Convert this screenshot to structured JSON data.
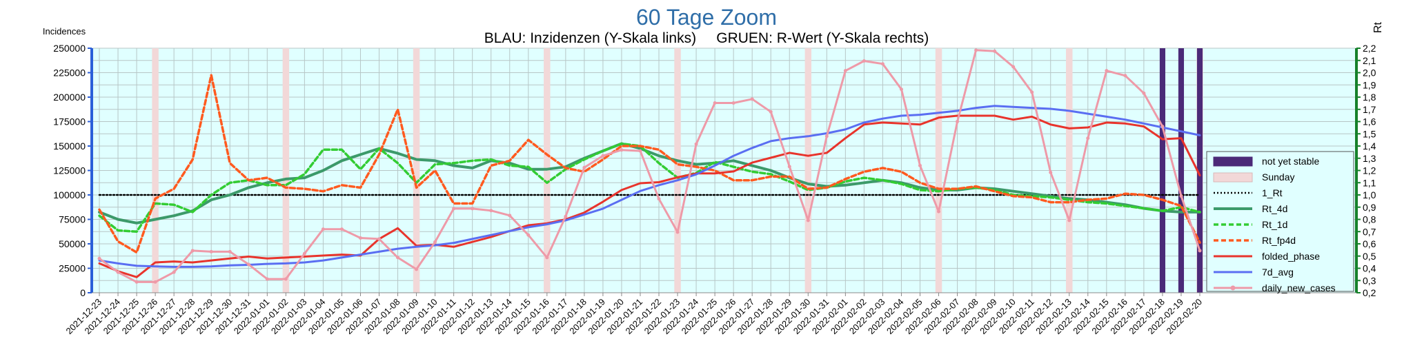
{
  "chart_data": {
    "type": "line",
    "title": "60 Tage Zoom",
    "subtitle": "BLAU: Inzidenzen (Y-Skala links)     GRUEN: R-Wert (Y-Skala rechts)",
    "ylabel_left": "Incidences",
    "ylabel_right": "Rt",
    "ylim_left": [
      0,
      250000
    ],
    "ylim_right": [
      0.2,
      2.2
    ],
    "yticks_left": [
      "0",
      "25000",
      "50000",
      "75000",
      "100000",
      "125000",
      "150000",
      "175000",
      "200000",
      "225000",
      "250000"
    ],
    "yticks_right": [
      "0,2",
      "0,3",
      "0,4",
      "0,5",
      "0,6",
      "0,7",
      "0,8",
      "0,9",
      "1,0",
      "1,1",
      "1,2",
      "1,3",
      "1,4",
      "1,5",
      "1,6",
      "1,7",
      "1,8",
      "1,9",
      "2,0",
      "2,1",
      "2,2"
    ],
    "grid": true,
    "legend_position": "right",
    "background": "#e0ffff",
    "x": [
      "2021-12-23",
      "2021-12-24",
      "2021-12-25",
      "2021-12-26",
      "2021-12-27",
      "2021-12-28",
      "2021-12-29",
      "2021-12-30",
      "2021-12-31",
      "2022-01-01",
      "2022-01-02",
      "2022-01-03",
      "2022-01-04",
      "2022-01-05",
      "2022-01-06",
      "2022-01-07",
      "2022-01-08",
      "2022-01-09",
      "2022-01-10",
      "2022-01-11",
      "2022-01-12",
      "2022-01-13",
      "2022-01-14",
      "2022-01-15",
      "2022-01-16",
      "2022-01-17",
      "2022-01-18",
      "2022-01-19",
      "2022-01-20",
      "2022-01-21",
      "2022-01-22",
      "2022-01-23",
      "2022-01-24",
      "2022-01-25",
      "2022-01-26",
      "2022-01-27",
      "2022-01-28",
      "2022-01-29",
      "2022-01-30",
      "2022-01-31",
      "2022-02-01",
      "2022-02-02",
      "2022-02-03",
      "2022-02-04",
      "2022-02-05",
      "2022-02-06",
      "2022-02-07",
      "2022-02-08",
      "2022-02-09",
      "2022-02-10",
      "2022-02-11",
      "2022-02-12",
      "2022-02-13",
      "2022-02-14",
      "2022-02-15",
      "2022-02-16",
      "2022-02-17",
      "2022-02-18",
      "2022-02-19",
      "2022-02-20"
    ],
    "sundays": [
      "2021-12-26",
      "2022-01-02",
      "2022-01-09",
      "2022-01-16",
      "2022-01-23",
      "2022-01-30",
      "2022-02-06",
      "2022-02-13",
      "2022-02-20"
    ],
    "not_yet_stable": [
      "2022-02-18",
      "2022-02-19",
      "2022-02-20"
    ],
    "series": [
      {
        "name": "not yet stable",
        "kind": "band",
        "color": "#4b2a78"
      },
      {
        "name": "Sunday",
        "kind": "band",
        "color": "#f2d8d8"
      },
      {
        "name": "1_Rt",
        "axis": "right",
        "color": "#000000",
        "dash": "dotted",
        "width": 2.5,
        "values": [
          1.0,
          1.0,
          1.0,
          1.0,
          1.0,
          1.0,
          1.0,
          1.0,
          1.0,
          1.0,
          1.0,
          1.0,
          1.0,
          1.0,
          1.0,
          1.0,
          1.0,
          1.0,
          1.0,
          1.0,
          1.0,
          1.0,
          1.0,
          1.0,
          1.0,
          1.0,
          1.0,
          1.0,
          1.0,
          1.0,
          1.0,
          1.0,
          1.0,
          1.0,
          1.0,
          1.0,
          1.0,
          1.0,
          1.0,
          1.0,
          1.0,
          1.0,
          1.0,
          1.0,
          1.0,
          1.0,
          1.0,
          1.0,
          1.0,
          1.0,
          1.0,
          1.0,
          1.0,
          1.0,
          1.0,
          1.0,
          1.0,
          1.0,
          1.0,
          1.0
        ]
      },
      {
        "name": "Rt_4d",
        "axis": "right",
        "color": "#3c9a6a",
        "dash": "solid",
        "width": 4,
        "values": [
          0.86,
          0.8,
          0.77,
          0.8,
          0.83,
          0.87,
          0.96,
          1.0,
          1.06,
          1.1,
          1.13,
          1.14,
          1.2,
          1.28,
          1.33,
          1.38,
          1.34,
          1.29,
          1.28,
          1.24,
          1.22,
          1.28,
          1.26,
          1.21,
          1.21,
          1.23,
          1.3,
          1.36,
          1.42,
          1.38,
          1.32,
          1.28,
          1.25,
          1.26,
          1.28,
          1.24,
          1.2,
          1.14,
          1.09,
          1.07,
          1.08,
          1.1,
          1.12,
          1.1,
          1.06,
          1.04,
          1.04,
          1.06,
          1.05,
          1.03,
          1.01,
          0.99,
          0.97,
          0.96,
          0.94,
          0.92,
          0.89,
          0.87,
          0.86,
          0.86
        ]
      },
      {
        "name": "Rt_1d",
        "axis": "right",
        "color": "#33cc33",
        "dash": "dashed",
        "width": 3.5,
        "values": [
          0.83,
          0.71,
          0.7,
          0.93,
          0.92,
          0.86,
          1.0,
          1.1,
          1.12,
          1.08,
          1.08,
          1.17,
          1.37,
          1.37,
          1.21,
          1.38,
          1.26,
          1.1,
          1.25,
          1.26,
          1.28,
          1.29,
          1.24,
          1.23,
          1.1,
          1.21,
          1.29,
          1.36,
          1.42,
          1.4,
          1.26,
          1.14,
          1.18,
          1.27,
          1.23,
          1.19,
          1.17,
          1.11,
          1.04,
          1.06,
          1.11,
          1.14,
          1.12,
          1.09,
          1.04,
          1.03,
          1.05,
          1.06,
          1.04,
          1.0,
          0.99,
          0.98,
          0.96,
          0.94,
          0.93,
          0.91,
          0.89,
          0.87,
          0.9,
          0.86
        ]
      },
      {
        "name": "Rt_fp4d",
        "axis": "right",
        "color": "#ff5a1f",
        "dash": "dashed",
        "width": 3.5,
        "values": [
          0.88,
          0.62,
          0.53,
          0.97,
          1.05,
          1.29,
          1.98,
          1.26,
          1.12,
          1.14,
          1.06,
          1.05,
          1.03,
          1.08,
          1.06,
          1.33,
          1.7,
          1.06,
          1.2,
          0.93,
          0.93,
          1.24,
          1.28,
          1.45,
          1.33,
          1.22,
          1.19,
          1.29,
          1.4,
          1.4,
          1.37,
          1.25,
          1.23,
          1.2,
          1.12,
          1.12,
          1.15,
          1.15,
          1.05,
          1.06,
          1.13,
          1.19,
          1.22,
          1.19,
          1.1,
          1.05,
          1.05,
          1.07,
          1.03,
          0.99,
          0.98,
          0.94,
          0.94,
          0.96,
          0.97,
          1.01,
          1.0,
          0.96,
          0.91,
          0.61
        ]
      },
      {
        "name": "folded_phase",
        "axis": "left",
        "color": "#e8342c",
        "dash": "solid",
        "width": 3,
        "values": [
          30000,
          22000,
          16000,
          31000,
          32000,
          31000,
          33000,
          35000,
          37000,
          35000,
          36000,
          37000,
          38000,
          39000,
          38000,
          55000,
          66000,
          48000,
          49000,
          47000,
          52000,
          57000,
          63000,
          69000,
          71000,
          75000,
          82000,
          93000,
          105000,
          112000,
          113000,
          118000,
          122000,
          122000,
          124000,
          133000,
          138000,
          143000,
          140000,
          143000,
          158000,
          172000,
          174000,
          173000,
          172000,
          179000,
          181000,
          181000,
          181000,
          177000,
          180000,
          172000,
          168000,
          169000,
          174000,
          173000,
          170000,
          157000,
          158000,
          120000
        ]
      },
      {
        "name": "7d_avg",
        "axis": "left",
        "color": "#5a6ef2",
        "dash": "solid",
        "width": 3,
        "values": [
          33000,
          30000,
          27500,
          27000,
          26500,
          26500,
          27000,
          28000,
          28500,
          29500,
          30000,
          31000,
          33000,
          36000,
          39000,
          42000,
          45000,
          47000,
          48500,
          51000,
          55000,
          59000,
          63000,
          67000,
          70000,
          74000,
          80000,
          86000,
          95000,
          104000,
          110000,
          115000,
          121000,
          130000,
          140000,
          148000,
          155000,
          158000,
          160000,
          163000,
          167000,
          174000,
          178000,
          181000,
          182000,
          184000,
          186000,
          189000,
          191000,
          190000,
          189000,
          188000,
          186000,
          183000,
          180000,
          177000,
          173000,
          169000,
          165000,
          161000
        ]
      },
      {
        "name": "daily_new_cases",
        "axis": "left",
        "color": "#ee9aa8",
        "dash": "solid",
        "width": 3,
        "values": [
          35000,
          21000,
          11000,
          11000,
          21000,
          43000,
          42000,
          42000,
          29000,
          14000,
          14000,
          40000,
          65000,
          65000,
          56000,
          55000,
          36000,
          24000,
          52000,
          86000,
          86000,
          84000,
          79000,
          59000,
          36000,
          78000,
          128000,
          140000,
          146000,
          145000,
          96000,
          62000,
          152000,
          194000,
          194000,
          198000,
          185000,
          129000,
          74000,
          160000,
          227000,
          237000,
          234000,
          208000,
          130000,
          83000,
          175000,
          248000,
          247000,
          231000,
          205000,
          123000,
          74000,
          158000,
          227000,
          222000,
          204000,
          170000,
          99000,
          43000
        ]
      }
    ]
  }
}
